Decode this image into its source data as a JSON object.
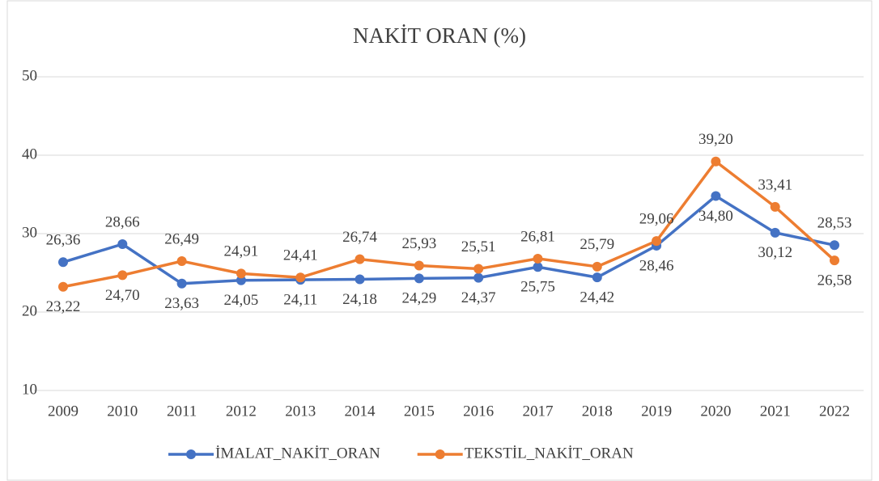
{
  "chart_data": {
    "type": "line",
    "title": "NAKİT ORAN (%)",
    "categories": [
      "2009",
      "2010",
      "2011",
      "2012",
      "2013",
      "2014",
      "2015",
      "2016",
      "2017",
      "2018",
      "2019",
      "2020",
      "2021",
      "2022"
    ],
    "series": [
      {
        "name": "İMALAT_NAKİT_ORAN",
        "color": "#4472c4",
        "values": [
          26.36,
          28.66,
          23.63,
          24.05,
          24.11,
          24.18,
          24.29,
          24.37,
          25.75,
          24.42,
          28.46,
          34.8,
          30.12,
          28.53
        ],
        "value_labels": [
          "26,36",
          "28,66",
          "23,63",
          "24,05",
          "24,11",
          "24,18",
          "24,29",
          "24,37",
          "25,75",
          "24,42",
          "28,46",
          "34,80",
          "30,12",
          "28,53"
        ]
      },
      {
        "name": "TEKSTİL_NAKİT_ORAN",
        "color": "#ed7d31",
        "values": [
          23.22,
          24.7,
          26.49,
          24.91,
          24.41,
          26.74,
          25.93,
          25.51,
          26.81,
          25.79,
          29.06,
          39.2,
          33.41,
          26.58
        ],
        "value_labels": [
          "23,22",
          "24,70",
          "26,49",
          "24,91",
          "24,41",
          "26,74",
          "25,93",
          "25,51",
          "26,81",
          "25,79",
          "29,06",
          "39,20",
          "33,41",
          "26,58"
        ]
      }
    ],
    "ylim": [
      10,
      50
    ],
    "yticks": [
      10,
      20,
      30,
      40,
      50
    ],
    "grid": true,
    "legend": "bottom"
  }
}
